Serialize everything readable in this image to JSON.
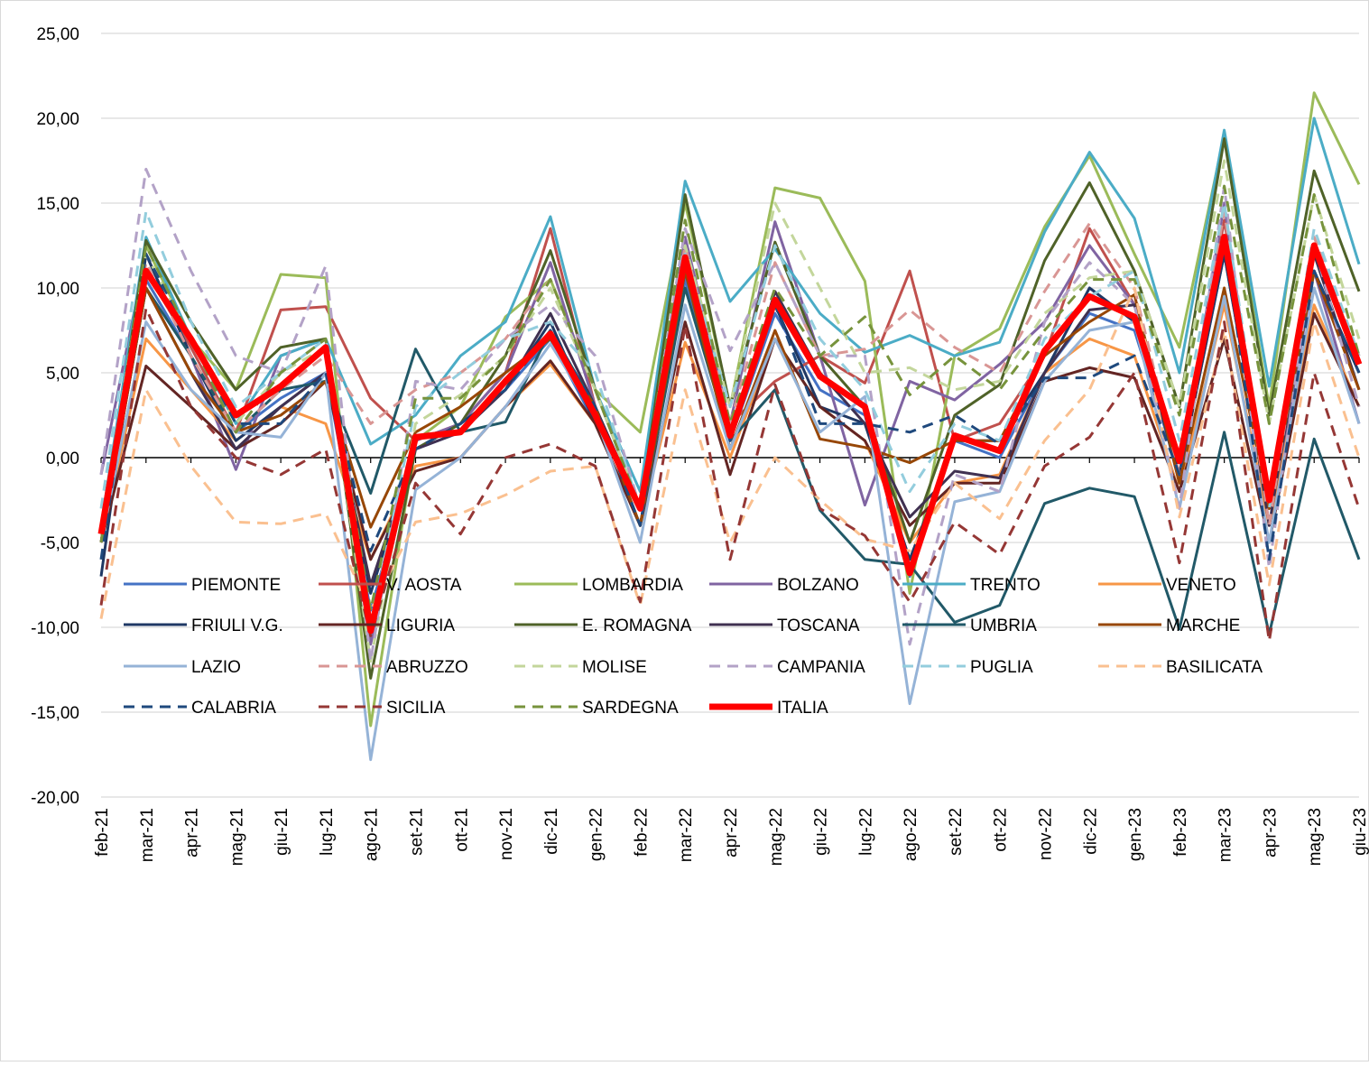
{
  "chart_data": {
    "type": "line",
    "categories": [
      "feb-21",
      "mar-21",
      "apr-21",
      "mag-21",
      "giu-21",
      "lug-21",
      "ago-21",
      "set-21",
      "ott-21",
      "nov-21",
      "dic-21",
      "gen-22",
      "feb-22",
      "mar-22",
      "apr-22",
      "mag-22",
      "giu-22",
      "lug-22",
      "ago-22",
      "set-22",
      "ott-22",
      "nov-22",
      "dic-22",
      "gen-23",
      "feb-23",
      "mar-23",
      "apr-23",
      "mag-23",
      "giu-23"
    ],
    "ylim": [
      -20,
      25
    ],
    "yticks": [
      {
        "value": -20,
        "label": "-20,00"
      },
      {
        "value": -15,
        "label": "-15,00"
      },
      {
        "value": -10,
        "label": "-10,00"
      },
      {
        "value": -5,
        "label": "-5,00"
      },
      {
        "value": 0,
        "label": "0,00"
      },
      {
        "value": 5,
        "label": "5,00"
      },
      {
        "value": 10,
        "label": "10,00"
      },
      {
        "value": 15,
        "label": "15,00"
      },
      {
        "value": 20,
        "label": "20,00"
      },
      {
        "value": 25,
        "label": "25,00"
      }
    ],
    "grid": true,
    "legend": "bottom",
    "series": [
      {
        "name": "PIEMONTE",
        "color": "#4472c4",
        "dashed": false,
        "values": [
          -5,
          10.5,
          6,
          1.5,
          3.5,
          5,
          -9,
          0.5,
          1.5,
          4,
          7,
          2,
          -4,
          10.5,
          1,
          8.5,
          4,
          2.5,
          -7,
          1,
          0,
          5,
          8.5,
          7.5,
          -1,
          12,
          -3,
          11,
          5
        ]
      },
      {
        "name": "V. AOSTA",
        "color": "#c0504d",
        "dashed": false,
        "values": [
          -5,
          11,
          6.5,
          1.5,
          8.7,
          8.9,
          3.5,
          1,
          2,
          5,
          13.5,
          3,
          -3,
          11,
          2,
          4.5,
          6,
          4.4,
          11,
          1,
          2,
          6,
          13.5,
          9,
          -1,
          14,
          -3,
          12,
          6
        ]
      },
      {
        "name": "LOMBARDIA",
        "color": "#9bbb59",
        "dashed": false,
        "values": [
          -5,
          12.5,
          7,
          4,
          10.8,
          10.6,
          -15.8,
          1,
          3,
          8.3,
          10.5,
          4,
          1.5,
          15,
          3,
          15.9,
          15.3,
          10.4,
          -8,
          6,
          7.6,
          13.6,
          17.8,
          12,
          6.5,
          19,
          3,
          21.5,
          16.1
        ]
      },
      {
        "name": "BOLZANO",
        "color": "#8064a2",
        "dashed": false,
        "values": [
          -1,
          12,
          6,
          -0.7,
          6,
          7,
          -11,
          1,
          2,
          5,
          11.5,
          3,
          -3,
          13,
          2,
          13.9,
          6,
          -2.8,
          4.5,
          3.4,
          5.5,
          8,
          12.5,
          9,
          -1,
          15,
          -4,
          11,
          2
        ]
      },
      {
        "name": "TRENTO",
        "color": "#4bacc6",
        "dashed": false,
        "values": [
          -4,
          13,
          7,
          2,
          6,
          7,
          0.8,
          2.5,
          6,
          8,
          14.2,
          4,
          -2,
          16.3,
          9.2,
          12.3,
          8.5,
          6.2,
          7.2,
          6,
          6.8,
          13.3,
          18,
          14.1,
          5,
          19.3,
          4.2,
          20,
          11.4
        ]
      },
      {
        "name": "VENETO",
        "color": "#f79646",
        "dashed": false,
        "values": [
          -5,
          7,
          4,
          1,
          3,
          2,
          -6,
          -0.5,
          0,
          3,
          5.5,
          2,
          -4,
          6.8,
          0,
          7,
          3,
          1,
          -5,
          -1.5,
          -1,
          5,
          7,
          6,
          -2,
          9,
          -4,
          9,
          3
        ]
      },
      {
        "name": "FRIULI V.G.",
        "color": "#1f3864",
        "dashed": false,
        "values": [
          -7,
          12,
          6,
          1,
          3,
          5,
          -8,
          0.5,
          2,
          4,
          8,
          2,
          -4,
          11,
          1,
          9,
          3,
          2,
          -6,
          1,
          1,
          5,
          10,
          8,
          -1,
          12,
          -3,
          11,
          5
        ]
      },
      {
        "name": "LIGURIA",
        "color": "#632523",
        "dashed": false,
        "values": [
          -5,
          5.4,
          3,
          0.5,
          2,
          4.5,
          -6,
          -0.8,
          0,
          3,
          5.7,
          2,
          -4,
          8,
          -1,
          7,
          3,
          1,
          -4,
          -1.5,
          -1.5,
          4.5,
          5.3,
          4.7,
          -2,
          7,
          -5,
          8.5,
          3
        ]
      },
      {
        "name": "E. ROMAGNA",
        "color": "#4f6228",
        "dashed": false,
        "values": [
          -5,
          12.8,
          8,
          4,
          6.5,
          7,
          -13,
          0.5,
          2,
          6,
          12.2,
          4,
          -3,
          15.5,
          3,
          12.7,
          6,
          3,
          -5,
          2.5,
          4.3,
          11.6,
          16.2,
          11,
          3,
          18.8,
          2.5,
          16.9,
          9.8
        ]
      },
      {
        "name": "TOSCANA",
        "color": "#403151",
        "dashed": false,
        "values": [
          -5,
          10,
          5,
          0.5,
          3,
          5,
          -7.5,
          0.5,
          1.5,
          4,
          8.5,
          3,
          -3,
          11.5,
          1,
          9.8,
          5,
          2,
          -3.5,
          -0.8,
          -1.2,
          5,
          8.7,
          9,
          -1.5,
          13,
          -4,
          12,
          4
        ]
      },
      {
        "name": "UMBRIA",
        "color": "#215968",
        "dashed": false,
        "values": [
          -5,
          10,
          6,
          1.5,
          4,
          4.5,
          -2.1,
          6.4,
          1.5,
          2.1,
          7.5,
          3,
          -4,
          10,
          1,
          4,
          -3.1,
          -6,
          -6.3,
          -9.7,
          -8.7,
          -2.7,
          -1.8,
          -2.3,
          -10.1,
          1.5,
          -10.4,
          1.1,
          -6
        ]
      },
      {
        "name": "MARCHE",
        "color": "#974706",
        "dashed": false,
        "values": [
          -5,
          10,
          5,
          1.5,
          2.5,
          4.5,
          -4.1,
          1.5,
          3,
          5,
          7,
          3,
          -4,
          11,
          0.5,
          7.5,
          1.1,
          0.6,
          -0.3,
          1,
          1,
          6,
          8,
          9.6,
          -1.5,
          10,
          -3,
          11,
          4
        ]
      },
      {
        "name": "LAZIO",
        "color": "#95b3d7",
        "dashed": false,
        "values": [
          -5,
          8,
          4,
          1.5,
          1.2,
          5,
          -17.8,
          -1.9,
          0,
          3,
          6.7,
          2.5,
          -5,
          9,
          0.5,
          7,
          1.5,
          3.6,
          -14.5,
          -2.6,
          -2,
          4.5,
          7.5,
          8,
          -3,
          9.5,
          -5,
          10,
          2
        ]
      },
      {
        "name": "ABRUZZO",
        "color": "#d99694",
        "dashed": true,
        "values": [
          -5,
          11.5,
          6,
          1.5,
          4,
          6,
          2,
          4,
          5,
          7,
          10.5,
          4,
          -3,
          12.5,
          2,
          11.5,
          6,
          6.4,
          8.7,
          6.5,
          5,
          9.8,
          13.8,
          10,
          -1,
          14.5,
          -4,
          13,
          6
        ]
      },
      {
        "name": "MOLISE",
        "color": "#c3d69b",
        "dashed": true,
        "values": [
          -4,
          12,
          7,
          2,
          5,
          6.5,
          -12,
          2,
          3.7,
          6,
          10,
          4,
          -3,
          12.5,
          3,
          15,
          10,
          5,
          5.3,
          4,
          4.5,
          8.5,
          10.6,
          11,
          3,
          17.5,
          2,
          15.5,
          7
        ]
      },
      {
        "name": "CAMPANIA",
        "color": "#b3a2c7",
        "dashed": true,
        "values": [
          -1,
          17,
          11,
          6,
          5,
          11.3,
          -12,
          4.5,
          4,
          7,
          9,
          6,
          -3,
          13.5,
          6.3,
          11.5,
          6,
          6,
          -11,
          -1,
          -2,
          8,
          11.5,
          9,
          -3,
          16,
          -6.5,
          12.5,
          3
        ]
      },
      {
        "name": "PUGLIA",
        "color": "#93cddd",
        "dashed": true,
        "values": [
          -3,
          14.5,
          8,
          3,
          5,
          7,
          -10,
          3,
          5,
          7,
          8,
          5,
          -3,
          12,
          3,
          12.5,
          7,
          4,
          -2,
          2,
          1,
          7,
          9.5,
          11,
          1,
          15,
          -3,
          13.5,
          6
        ]
      },
      {
        "name": "BASILICATA",
        "color": "#fac090",
        "dashed": true,
        "values": [
          -9.5,
          4,
          -0.5,
          -3.8,
          -3.9,
          -3.3,
          -9,
          -3.8,
          -3.3,
          -2.2,
          -0.8,
          -0.5,
          -8.7,
          4,
          -5,
          0,
          -2.5,
          -4.8,
          -5.5,
          -1.5,
          -3.6,
          1,
          4,
          10,
          -3.5,
          7.5,
          -7.5,
          8,
          0
        ]
      },
      {
        "name": "CALABRIA",
        "color": "#1f497d",
        "dashed": true,
        "values": [
          -6,
          12,
          7,
          2,
          2,
          5,
          -5.5,
          0.5,
          2,
          4,
          7.5,
          3,
          -4,
          12,
          1,
          9,
          2,
          2,
          1.5,
          2.5,
          0.8,
          4.7,
          4.7,
          6,
          -1,
          13,
          -6,
          11,
          5
        ]
      },
      {
        "name": "SICILIA",
        "color": "#953735",
        "dashed": true,
        "values": [
          -8.7,
          8.8,
          3,
          0,
          -1,
          0.5,
          -10.5,
          -1.5,
          -4.5,
          0,
          0.8,
          -0.5,
          -8.5,
          7.8,
          -6,
          4.3,
          -3,
          -4.6,
          -8.5,
          -3.8,
          -5.7,
          -0.5,
          1.2,
          5,
          -6.2,
          8,
          -10.8,
          5,
          -3
        ]
      },
      {
        "name": "SARDEGNA",
        "color": "#77933c",
        "dashed": true,
        "values": [
          -5,
          12.5,
          7,
          1.5,
          5,
          7,
          -9,
          3.5,
          3.5,
          6,
          10.5,
          4,
          -3,
          14,
          2,
          10,
          6,
          8.3,
          3.7,
          6,
          4,
          7.5,
          10.5,
          10.5,
          2.5,
          16,
          2,
          15.5,
          6
        ]
      },
      {
        "name": "ITALIA",
        "color": "#ff0000",
        "dashed": false,
        "bold": true,
        "values": [
          -4.5,
          11,
          7,
          2.5,
          4.2,
          6.5,
          -10.2,
          1.2,
          1.5,
          4.5,
          7.3,
          2.5,
          -3,
          11.8,
          1.3,
          9.3,
          4.8,
          3,
          -6.8,
          1.3,
          0.4,
          6.3,
          9.5,
          8.3,
          -0.2,
          13,
          -2.5,
          12.5,
          5.5
        ]
      }
    ]
  }
}
